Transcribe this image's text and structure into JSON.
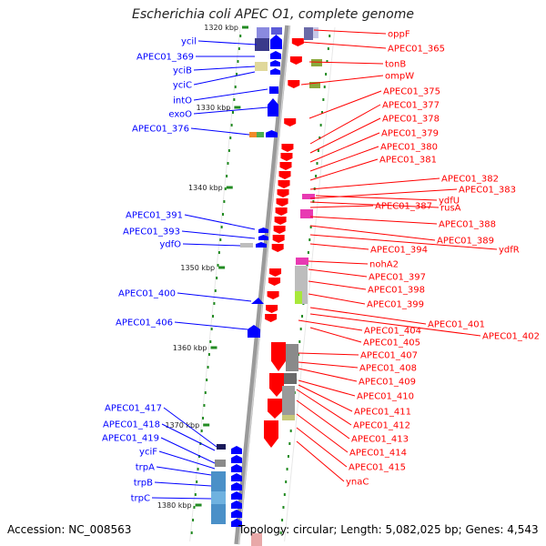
{
  "title": "Escherichia coli APEC O1, complete genome",
  "footer": {
    "accession": "Accession: NC_008563",
    "topology": "Topology: circular; Length: 5,082,025 bp; Genes: 4,543"
  },
  "colors": {
    "left_strand": "#0000ff",
    "right_strand": "#ff0000",
    "backbone": "#888888",
    "tick_mark": "#228b22"
  },
  "ticks": [
    "1320 kbp",
    "1330 kbp",
    "1340 kbp",
    "1350 kbp",
    "1360 kbp",
    "1370 kbp",
    "1380 kbp"
  ],
  "left_genes": [
    "ycil",
    "APEC01_369",
    "yciB",
    "yciC",
    "intO",
    "exoO",
    "APEC01_376",
    "APEC01_391",
    "APEC01_393",
    "ydfO",
    "APEC01_400",
    "APEC01_406",
    "APEC01_417",
    "APEC01_418",
    "APEC01_419",
    "yciF",
    "trpA",
    "trpB",
    "trpC"
  ],
  "right_genes": [
    "oppF",
    "APEC01_365",
    "tonB",
    "ompW",
    "APEC01_375",
    "APEC01_377",
    "APEC01_378",
    "APEC01_379",
    "APEC01_380",
    "APEC01_381",
    "APEC01_382",
    "APEC01_383",
    "ydfU",
    "rusA",
    "APEC01_387",
    "APEC01_388",
    "APEC01_389",
    "ydfR",
    "APEC01_394",
    "nohA2",
    "APEC01_397",
    "APEC01_398",
    "APEC01_399",
    "APEC01_401",
    "APEC01_402",
    "APEC01_404",
    "APEC01_405",
    "APEC01_407",
    "APEC01_408",
    "APEC01_409",
    "APEC01_410",
    "APEC01_411",
    "APEC01_412",
    "APEC01_413",
    "APEC01_414",
    "APEC01_415",
    "ynaC"
  ]
}
